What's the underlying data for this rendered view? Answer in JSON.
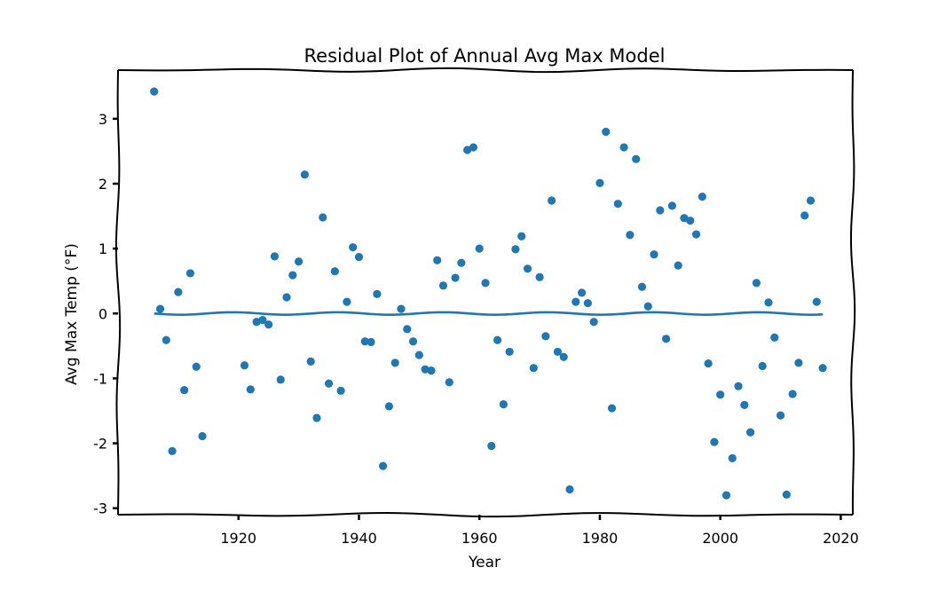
{
  "chart_data": {
    "type": "scatter",
    "title": "Residual Plot of Annual Avg Max Model",
    "xlabel": "Year",
    "ylabel": "Avg Max Temp (°F)",
    "xlim": [
      1900,
      2022
    ],
    "ylim": [
      -3.1,
      3.75
    ],
    "xticks": [
      1920,
      1940,
      1960,
      1980,
      2000,
      2020
    ],
    "yticks": [
      -3,
      -2,
      -1,
      0,
      1,
      2,
      3
    ],
    "grid": false,
    "legend": "none",
    "colors": {
      "points": "#1f77b4",
      "line": "#1f77b4",
      "frame": "#000000"
    },
    "series": [
      {
        "kind": "points",
        "x": [
          1906,
          1907,
          1908,
          1909,
          1910,
          1911,
          1912,
          1913,
          1914,
          1921,
          1922,
          1923,
          1924,
          1925,
          1926,
          1927,
          1928,
          1929,
          1930,
          1931,
          1932,
          1933,
          1934,
          1935,
          1936,
          1937,
          1938,
          1939,
          1940,
          1941,
          1942,
          1943,
          1944,
          1945,
          1946,
          1947,
          1948,
          1949,
          1950,
          1951,
          1952,
          1953,
          1954,
          1955,
          1956,
          1957,
          1958,
          1959,
          1960,
          1961,
          1962,
          1963,
          1964,
          1965,
          1966,
          1967,
          1968,
          1969,
          1970,
          1971,
          1972,
          1973,
          1974,
          1975,
          1976,
          1977,
          1978,
          1979,
          1980,
          1981,
          1982,
          1983,
          1984,
          1985,
          1986,
          1987,
          1988,
          1989,
          1990,
          1991,
          1992,
          1993,
          1994,
          1995,
          1996,
          1997,
          1998,
          1999,
          2000,
          2001,
          2002,
          2003,
          2004,
          2005,
          2006,
          2007,
          2008,
          2009,
          2010,
          2011,
          2012,
          2013,
          2014,
          2015,
          2016,
          2017
        ],
        "y": [
          3.42,
          0.07,
          -0.41,
          -2.12,
          0.33,
          -1.18,
          0.62,
          -0.82,
          -1.89,
          -0.8,
          -1.17,
          -0.13,
          -0.1,
          -0.17,
          0.88,
          -1.02,
          0.25,
          0.59,
          0.8,
          2.14,
          -0.74,
          -1.61,
          1.48,
          -1.08,
          0.65,
          -1.19,
          0.18,
          1.02,
          0.87,
          -0.43,
          -0.44,
          0.3,
          -2.35,
          -1.43,
          -0.76,
          0.07,
          -0.24,
          -0.43,
          -0.64,
          -0.86,
          -0.88,
          0.82,
          0.43,
          -1.06,
          0.55,
          0.78,
          2.52,
          2.56,
          1.0,
          0.47,
          -2.04,
          -0.41,
          -1.4,
          -0.59,
          0.99,
          1.19,
          0.69,
          -0.84,
          0.56,
          -0.35,
          1.74,
          -0.59,
          -0.67,
          -2.71,
          0.18,
          0.32,
          0.16,
          -0.13,
          2.01,
          2.8,
          -1.46,
          1.69,
          2.56,
          1.21,
          2.38,
          0.41,
          0.11,
          0.91,
          1.59,
          -0.39,
          1.66,
          0.74,
          1.47,
          1.43,
          1.22,
          1.8,
          -0.77,
          -1.98,
          -1.25,
          -2.8,
          -2.23,
          -1.12,
          -1.41,
          -1.83,
          0.47,
          -0.81,
          0.17,
          -0.37,
          -1.57,
          -2.79,
          -1.24,
          -0.76,
          1.51,
          1.74,
          0.18,
          -0.84
        ]
      },
      {
        "kind": "line",
        "x": [
          1906,
          2017
        ],
        "y": [
          0,
          0
        ]
      }
    ]
  }
}
